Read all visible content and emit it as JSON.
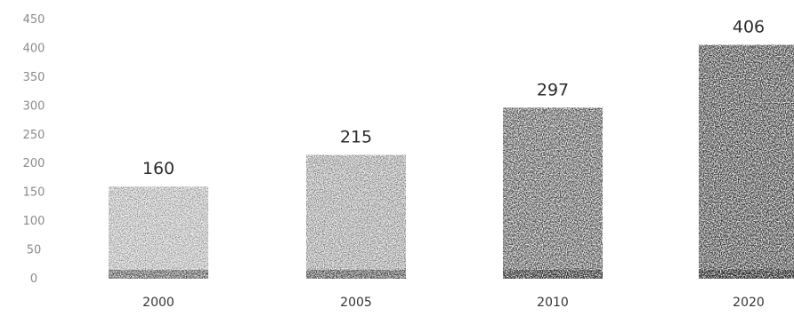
{
  "chart_data": {
    "type": "bar",
    "categories": [
      "2000",
      "2005",
      "2010",
      "2020"
    ],
    "values": [
      160,
      215,
      297,
      406
    ],
    "data_labels": [
      "160",
      "215",
      "297",
      "406"
    ],
    "y_ticks": [
      "0",
      "50",
      "100",
      "150",
      "200",
      "250",
      "300",
      "350",
      "400",
      "450"
    ],
    "y_tick_values": [
      0,
      50,
      100,
      150,
      200,
      250,
      300,
      350,
      400,
      450
    ],
    "ylim": [
      0,
      450
    ],
    "title": "",
    "xlabel": "",
    "ylabel": "",
    "grid": false,
    "legend": "none",
    "bar_texture": "stippled",
    "colors": {
      "bar_ink": "#1a1a1a",
      "bar_shade": "#000000",
      "axis_text": "#8a8a8a",
      "category_text": "#333333",
      "label_text": "#2c2c2c"
    }
  }
}
